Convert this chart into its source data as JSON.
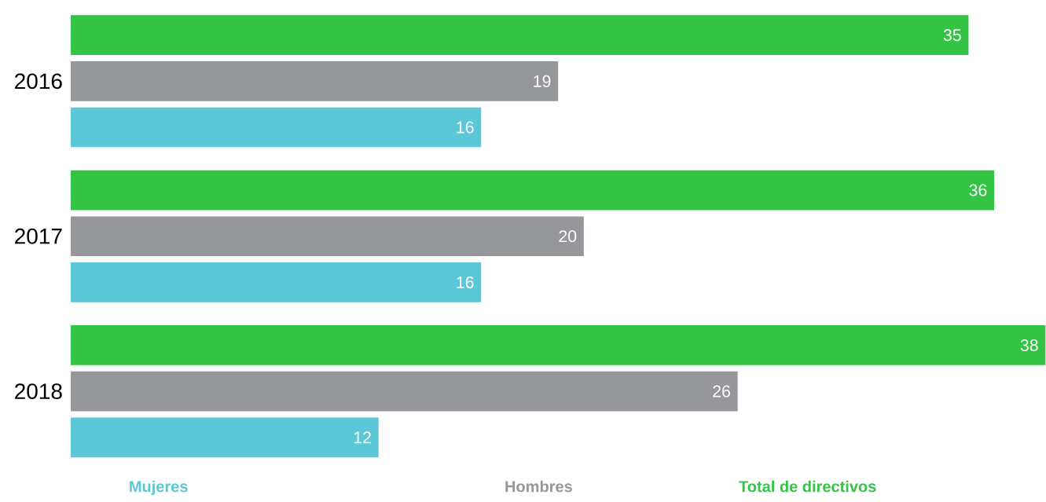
{
  "chart_data": {
    "type": "bar",
    "orientation": "horizontal",
    "categories": [
      "2016",
      "2017",
      "2018"
    ],
    "data_labels": true,
    "legend": "bottom",
    "series": [
      {
        "name": "Mujeres",
        "color": "#5bc7d7",
        "values": [
          16,
          16,
          12
        ]
      },
      {
        "name": "Hombres",
        "color": "#96979b",
        "values": [
          19,
          20,
          26
        ]
      },
      {
        "name": "Total de directivos",
        "color": "#33c345",
        "values": [
          35,
          36,
          38
        ]
      }
    ]
  }
}
